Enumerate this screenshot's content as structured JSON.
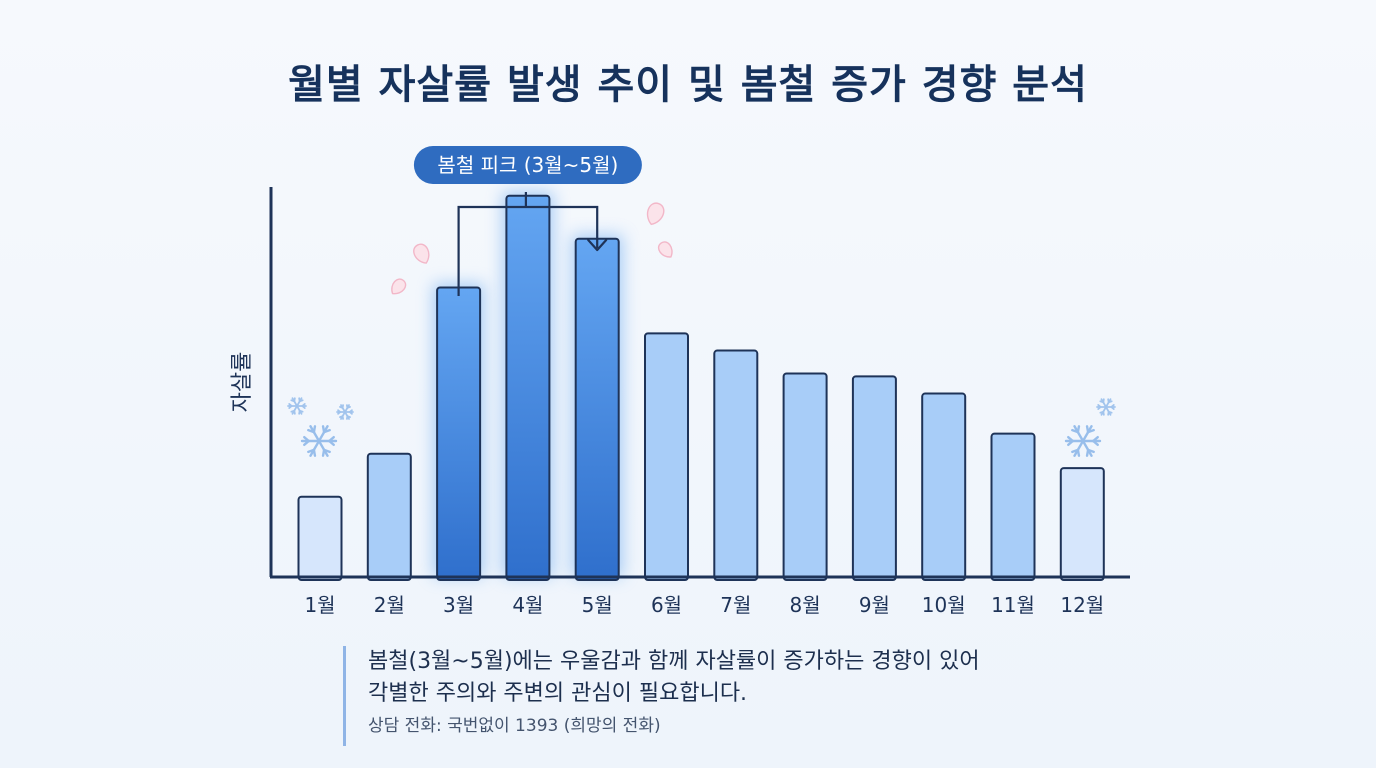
{
  "chart_data": {
    "type": "bar",
    "title": "월별 자살률 발생 추이 및 봄철 증가 경향 분석",
    "ylabel": "자살률",
    "xlabel": "",
    "categories": [
      "1월",
      "2월",
      "3월",
      "4월",
      "5월",
      "6월",
      "7월",
      "8월",
      "9월",
      "10월",
      "11월",
      "12월"
    ],
    "values": [
      28,
      43,
      101,
      133,
      118,
      85,
      79,
      71,
      70,
      64,
      50,
      38
    ],
    "ylim": [
      0,
      150
    ],
    "grid": false,
    "highlight": {
      "label": "봄철 피크 (3월~5월)",
      "categories": [
        "3월",
        "4월",
        "5월"
      ]
    },
    "colors": {
      "winter": "#d6e6fc",
      "spring_peak": "#3f82dc",
      "spring_peak_top": "#64a6f2",
      "normal": "#a8cdf8",
      "outline": "#1e3358",
      "axis": "#1e3358",
      "badge": "#2f6cc0"
    }
  },
  "note": {
    "line1": "봄철(3월~5월)에는 우울감과 함께 자살률이 증가하는 경향이 있어",
    "line2": "각별한 주의와 주변의 관심이 필요합니다.",
    "line3": "상담 전화: 국번없이 1393 (희망의 전화)"
  },
  "decorations": {
    "snowflake_icon": "snowflake-icon",
    "petal_icon": "cherry-blossom-petal-icon"
  }
}
